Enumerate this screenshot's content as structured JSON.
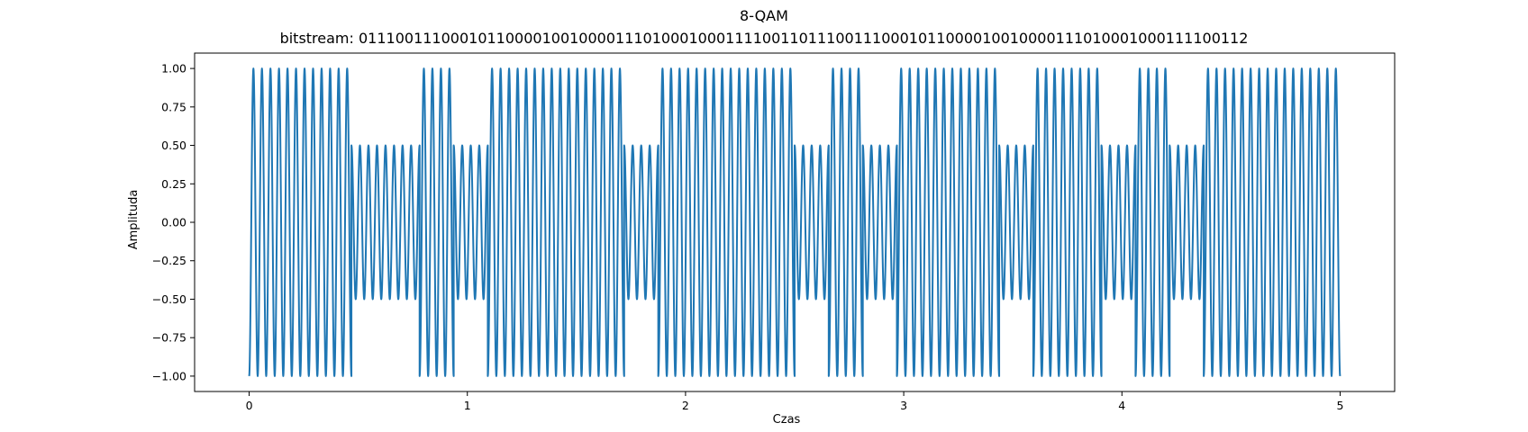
{
  "chart_data": {
    "type": "line",
    "title": "8-QAM",
    "subtitle": "bitstream: 0111001110001011000010010000111010001000111100110111001110001011000010010000111010001000111100112",
    "xlabel": "Czas",
    "ylabel": "Amplituda",
    "xlim": [
      -0.25,
      5.25
    ],
    "ylim": [
      -1.1,
      1.1
    ],
    "xticks": [
      0,
      1,
      2,
      3,
      4,
      5
    ],
    "xtick_labels": [
      "0",
      "1",
      "2",
      "3",
      "4",
      "5"
    ],
    "yticks": [
      -1.0,
      -0.75,
      -0.5,
      -0.25,
      0.0,
      0.25,
      0.5,
      0.75,
      1.0
    ],
    "ytick_labels": [
      "−1.00",
      "−0.75",
      "−0.50",
      "−0.25",
      "0.00",
      "0.25",
      "0.50",
      "0.75",
      "1.00"
    ],
    "grid": false,
    "series_color": "#1f77b4",
    "signal": {
      "t_start": 0,
      "t_end": 5,
      "samples_per_symbol": 160,
      "carrier_cycles_per_symbol": 4,
      "symbols": [
        {
          "amp": 1.0,
          "phase": 180
        },
        {
          "amp": 1.0,
          "phase": 180
        },
        {
          "amp": 1.0,
          "phase": 180
        },
        {
          "amp": 0.5,
          "phase": 0
        },
        {
          "amp": 0.5,
          "phase": 0
        },
        {
          "amp": 1.0,
          "phase": 180
        },
        {
          "amp": 0.5,
          "phase": 0
        },
        {
          "amp": 1.0,
          "phase": 180
        },
        {
          "amp": 1.0,
          "phase": 180
        },
        {
          "amp": 1.0,
          "phase": 180
        },
        {
          "amp": 1.0,
          "phase": 180
        },
        {
          "amp": 0.5,
          "phase": 0
        },
        {
          "amp": 1.0,
          "phase": 180
        },
        {
          "amp": 1.0,
          "phase": 180
        },
        {
          "amp": 1.0,
          "phase": 180
        },
        {
          "amp": 1.0,
          "phase": 180
        },
        {
          "amp": 0.5,
          "phase": 0
        },
        {
          "amp": 1.0,
          "phase": 180
        },
        {
          "amp": 0.5,
          "phase": 0
        },
        {
          "amp": 1.0,
          "phase": 180
        },
        {
          "amp": 1.0,
          "phase": 180
        },
        {
          "amp": 1.0,
          "phase": 180
        },
        {
          "amp": 0.5,
          "phase": 0
        },
        {
          "amp": 1.0,
          "phase": 180
        },
        {
          "amp": 1.0,
          "phase": 180
        },
        {
          "amp": 0.5,
          "phase": 0
        },
        {
          "amp": 1.0,
          "phase": 180
        },
        {
          "amp": 0.5,
          "phase": 0
        },
        {
          "amp": 1.0,
          "phase": 180
        },
        {
          "amp": 1.0,
          "phase": 180
        },
        {
          "amp": 1.0,
          "phase": 180
        },
        {
          "amp": 1.0,
          "phase": 180
        }
      ]
    }
  }
}
